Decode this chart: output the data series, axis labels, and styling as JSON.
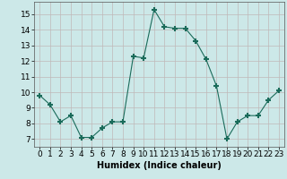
{
  "x": [
    0,
    1,
    2,
    3,
    4,
    5,
    6,
    7,
    8,
    9,
    10,
    11,
    12,
    13,
    14,
    15,
    16,
    17,
    18,
    19,
    20,
    21,
    22,
    23
  ],
  "y": [
    9.8,
    9.2,
    8.1,
    8.5,
    7.1,
    7.1,
    7.7,
    8.1,
    8.1,
    12.3,
    12.2,
    15.3,
    14.2,
    14.1,
    14.1,
    13.3,
    12.1,
    10.4,
    7.0,
    8.1,
    8.5,
    8.5,
    9.5,
    10.1
  ],
  "line_color": "#1a6b5a",
  "marker": "+",
  "marker_size": 4,
  "bg_color": "#cce8e8",
  "grid_color": "#c0b8b8",
  "xlabel": "Humidex (Indice chaleur)",
  "xlim": [
    -0.5,
    23.5
  ],
  "ylim": [
    6.5,
    15.8
  ],
  "yticks": [
    7,
    8,
    9,
    10,
    11,
    12,
    13,
    14,
    15
  ],
  "xticks": [
    0,
    1,
    2,
    3,
    4,
    5,
    6,
    7,
    8,
    9,
    10,
    11,
    12,
    13,
    14,
    15,
    16,
    17,
    18,
    19,
    20,
    21,
    22,
    23
  ],
  "xlabel_fontsize": 7,
  "tick_fontsize": 6.5
}
